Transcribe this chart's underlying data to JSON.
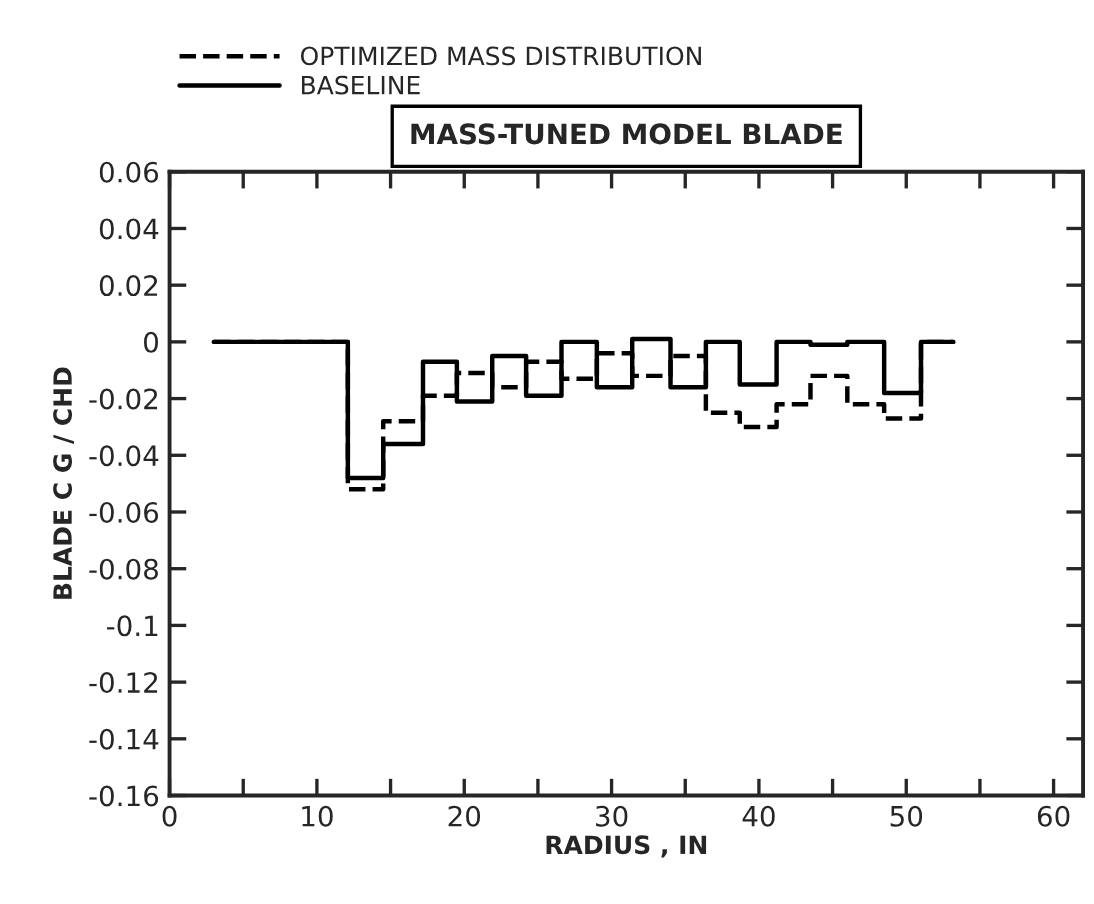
{
  "chart_data": {
    "type": "step",
    "title": "MASS-TUNED MODEL BLADE",
    "xlabel": "RADIUS , IN",
    "ylabel": "BLADE C G / CHD",
    "legend": "top left",
    "grid": false,
    "xlim": [
      0,
      62
    ],
    "ylim": [
      -0.16,
      0.06
    ],
    "xticks": [
      0,
      {
        "value": 5,
        "label": null
      },
      10,
      {
        "value": 15,
        "label": null
      },
      20,
      {
        "value": 25,
        "label": null
      },
      30,
      {
        "value": 35,
        "label": null
      },
      40,
      {
        "value": 45,
        "label": null
      },
      50,
      {
        "value": 55,
        "label": null
      },
      60
    ],
    "yticks": [
      -0.16,
      -0.14,
      -0.12,
      -0.1,
      -0.08,
      -0.06,
      -0.04,
      -0.02,
      0,
      0.02,
      0.04,
      0.06
    ],
    "series": [
      {
        "name": "OPTIMIZED MASS DISTRIBUTION",
        "color": "#000000",
        "line_style": "dashed",
        "x": [
          3.0,
          12.1,
          14.5,
          17.2,
          19.5,
          21.9,
          24.2,
          26.6,
          29.0,
          31.4,
          34.0,
          36.4,
          38.7,
          41.2,
          43.5,
          46.0,
          48.5,
          51.0,
          53.2
        ],
        "values": [
          0,
          -0.052,
          -0.028,
          -0.019,
          -0.011,
          -0.016,
          -0.007,
          -0.013,
          -0.004,
          -0.012,
          -0.005,
          -0.025,
          -0.03,
          -0.022,
          -0.012,
          -0.022,
          -0.027,
          0,
          0
        ]
      },
      {
        "name": "BASELINE",
        "color": "#000000",
        "line_style": "solid",
        "x": [
          3.0,
          12.1,
          14.5,
          17.2,
          19.5,
          21.9,
          24.2,
          26.6,
          29.0,
          31.4,
          34.0,
          36.4,
          38.7,
          41.2,
          43.5,
          46.0,
          48.5,
          51.0,
          53.2
        ],
        "values": [
          0,
          -0.048,
          -0.036,
          -0.007,
          -0.021,
          -0.005,
          -0.019,
          0,
          -0.016,
          0.001,
          -0.016,
          0,
          -0.015,
          0,
          -0.001,
          0,
          -0.018,
          0,
          0
        ]
      }
    ]
  }
}
